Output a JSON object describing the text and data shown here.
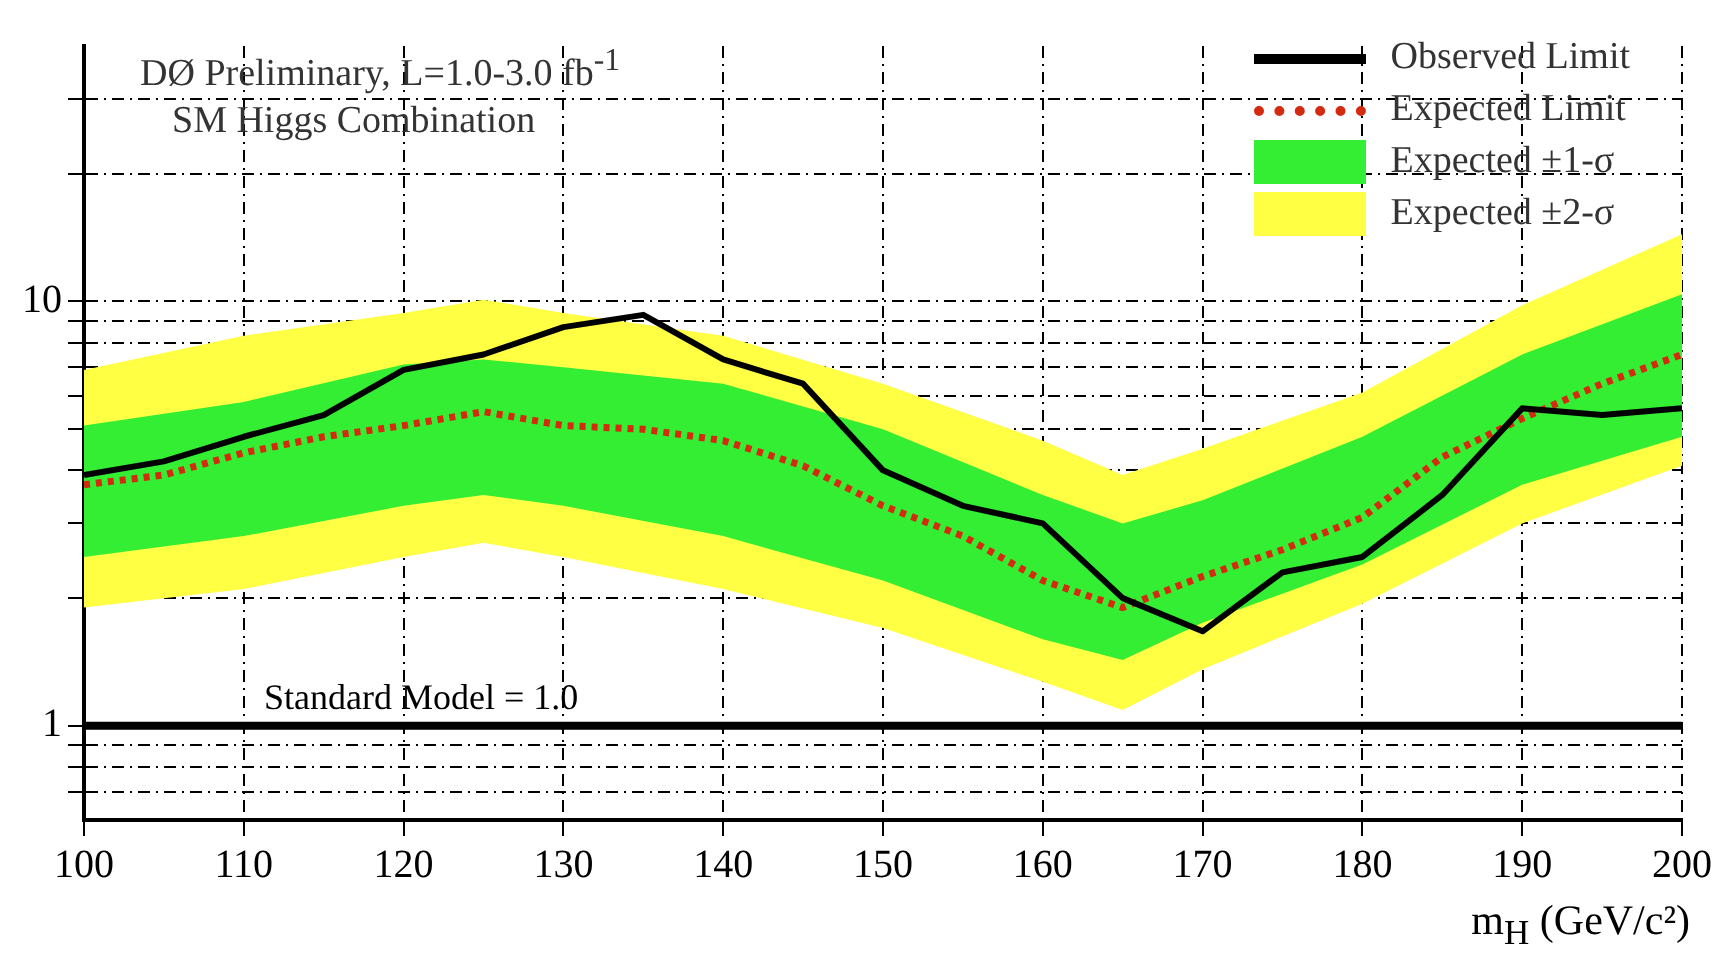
{
  "chart_data": {
    "type": "line",
    "title": "DØ Preliminary, L=1.0-3.0 fb$^{-1}$",
    "subtitle": "SM Higgs Combination",
    "xlabel": "m$_{H}$ (GeV/c²)",
    "x": [
      100,
      105,
      110,
      115,
      120,
      125,
      130,
      135,
      140,
      145,
      150,
      155,
      160,
      165,
      170,
      175,
      180,
      185,
      190,
      195,
      200
    ],
    "series": [
      {
        "name": "Observed Limit",
        "color": "#000000",
        "line_style": "solid",
        "values": [
          3.9,
          4.2,
          4.8,
          5.4,
          6.9,
          7.5,
          8.7,
          9.3,
          7.3,
          6.4,
          4.0,
          3.3,
          3.0,
          2.0,
          1.67,
          2.3,
          2.5,
          3.5,
          5.6,
          5.4,
          5.6
        ]
      },
      {
        "name": "Expected Limit",
        "color": "#d42a10",
        "line_style": "dotted",
        "values": [
          3.7,
          3.9,
          4.4,
          4.8,
          5.1,
          5.5,
          5.1,
          5.0,
          4.7,
          4.1,
          3.3,
          2.8,
          2.2,
          1.9,
          2.25,
          2.6,
          3.1,
          4.3,
          5.3,
          6.4,
          7.5
        ]
      },
      {
        "name": "Expected ±1-σ",
        "color": "#33ee33",
        "x": [
          100,
          110,
          120,
          125,
          130,
          140,
          150,
          160,
          165,
          170,
          180,
          190,
          200
        ],
        "values": [
          null,
          null,
          null,
          null,
          null,
          null,
          null,
          null,
          null,
          null,
          null,
          null,
          null
        ],
        "lower": [
          2.5,
          2.8,
          3.3,
          3.5,
          3.3,
          2.8,
          2.2,
          1.6,
          1.43,
          1.75,
          2.4,
          3.7,
          4.8
        ],
        "upper": [
          5.1,
          5.8,
          7.1,
          7.3,
          7.0,
          6.4,
          5.0,
          3.5,
          3.0,
          3.4,
          4.8,
          7.5,
          10.4
        ]
      },
      {
        "name": "Expected ±2-σ",
        "color": "#ffff44",
        "x": [
          100,
          110,
          120,
          125,
          130,
          140,
          150,
          160,
          165,
          170,
          180,
          190,
          200
        ],
        "values": [
          null,
          null,
          null,
          null,
          null,
          null,
          null,
          null,
          null,
          null,
          null,
          null,
          null
        ],
        "lower": [
          1.9,
          2.1,
          2.5,
          2.7,
          2.5,
          2.1,
          1.7,
          1.27,
          1.09,
          1.36,
          1.94,
          3.0,
          4.1
        ],
        "upper": [
          6.9,
          8.3,
          9.4,
          10.1,
          9.4,
          8.3,
          6.4,
          4.7,
          3.9,
          4.5,
          6.1,
          9.8,
          14.4
        ]
      }
    ],
    "xlim": [
      100,
      200
    ],
    "xticks": [
      100,
      110,
      120,
      130,
      140,
      150,
      160,
      170,
      180,
      190,
      200
    ],
    "ylim": [
      0.6,
      40
    ],
    "yticks": [
      {
        "value": 0.7,
        "label": null
      },
      {
        "value": 0.8,
        "label": null
      },
      {
        "value": 0.9,
        "label": null
      },
      1,
      {
        "value": 2,
        "label": null
      },
      {
        "value": 3,
        "label": null
      },
      {
        "value": 4,
        "label": null
      },
      {
        "value": 5,
        "label": null
      },
      {
        "value": 6,
        "label": null
      },
      {
        "value": 7,
        "label": null
      },
      {
        "value": 8,
        "label": null
      },
      {
        "value": 9,
        "label": null
      },
      10,
      {
        "value": 20,
        "label": null
      },
      {
        "value": 30,
        "label": null
      }
    ],
    "log": "y",
    "grid": true,
    "legend": "top right",
    "ref_lines": [
      {
        "axis": "y",
        "value": 1,
        "label": "Standard Model = 1.0",
        "color": "#000000"
      }
    ]
  }
}
